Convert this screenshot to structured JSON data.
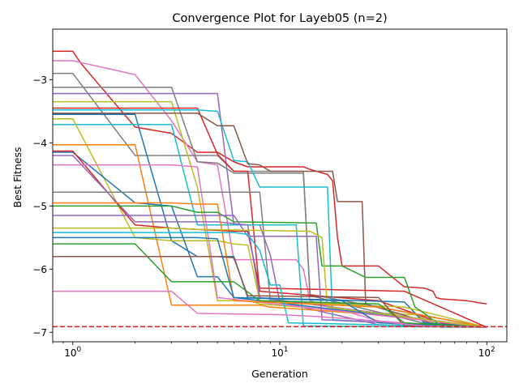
{
  "chart_data": {
    "type": "line",
    "title": "Convergence Plot for Layeb05 (n=2)",
    "xlabel": "Generation",
    "ylabel": "Best Fitness",
    "xscale": "log",
    "xlim": [
      0.8,
      125
    ],
    "ylim": [
      -7.15,
      -2.2
    ],
    "x_ticks": [
      1,
      10,
      100
    ],
    "x_tick_labels": [
      "10^0",
      "10^1",
      "10^2"
    ],
    "y_ticks": [
      -3,
      -4,
      -5,
      -6,
      -7
    ],
    "y_tick_labels": [
      "−3",
      "−4",
      "−5",
      "−6",
      "−7"
    ],
    "grid": false,
    "legend": "none",
    "reference_line": {
      "y": -6.91,
      "color": "#d62728",
      "style": "dashed"
    },
    "colors": [
      "#1f77b4",
      "#ff7f0e",
      "#2ca02c",
      "#d62728",
      "#9467bd",
      "#8c564b",
      "#e377c2",
      "#7f7f7f",
      "#bcbd22",
      "#17becf"
    ],
    "series": [
      {
        "color": "#d62728",
        "points": [
          [
            0.8,
            -2.55
          ],
          [
            1,
            -2.55
          ],
          [
            1.1,
            -2.75
          ],
          [
            2,
            -3.75
          ],
          [
            3,
            -3.85
          ],
          [
            4,
            -4.15
          ],
          [
            5,
            -4.15
          ],
          [
            6,
            -4.3
          ],
          [
            7,
            -4.38
          ],
          [
            13,
            -4.38
          ],
          [
            14,
            -4.42
          ],
          [
            17,
            -4.5
          ],
          [
            18,
            -4.6
          ],
          [
            19,
            -5.5
          ],
          [
            20,
            -5.95
          ],
          [
            30,
            -5.95
          ],
          [
            40,
            -6.28
          ],
          [
            50,
            -6.3
          ],
          [
            55,
            -6.35
          ],
          [
            57,
            -6.45
          ],
          [
            60,
            -6.47
          ],
          [
            80,
            -6.5
          ],
          [
            100,
            -6.55
          ]
        ]
      },
      {
        "color": "#e377c2",
        "points": [
          [
            0.8,
            -2.7
          ],
          [
            1,
            -2.7
          ],
          [
            2,
            -2.92
          ],
          [
            3,
            -3.65
          ],
          [
            4,
            -4.3
          ],
          [
            5,
            -4.35
          ],
          [
            6,
            -5.85
          ],
          [
            12,
            -5.85
          ],
          [
            13,
            -6.0
          ],
          [
            14,
            -6.5
          ],
          [
            30,
            -6.82
          ],
          [
            60,
            -6.9
          ],
          [
            100,
            -6.92
          ]
        ]
      },
      {
        "color": "#7f7f7f",
        "points": [
          [
            0.8,
            -2.9
          ],
          [
            1,
            -2.9
          ],
          [
            2,
            -4.2
          ],
          [
            4,
            -4.2
          ],
          [
            5,
            -4.2
          ],
          [
            6,
            -4.45
          ],
          [
            7,
            -4.45
          ],
          [
            8,
            -4.45
          ],
          [
            13,
            -4.45
          ],
          [
            14,
            -6.4
          ],
          [
            100,
            -6.92
          ]
        ]
      },
      {
        "color": "#7f7f7f",
        "points": [
          [
            0.8,
            -3.12
          ],
          [
            1,
            -3.12
          ],
          [
            3,
            -3.12
          ],
          [
            4,
            -4.3
          ],
          [
            5,
            -4.32
          ],
          [
            6,
            -4.48
          ],
          [
            13,
            -4.48
          ],
          [
            14,
            -6.42
          ],
          [
            60,
            -6.92
          ],
          [
            100,
            -6.92
          ]
        ]
      },
      {
        "color": "#9467bd",
        "points": [
          [
            0.8,
            -3.22
          ],
          [
            1,
            -3.22
          ],
          [
            2,
            -3.22
          ],
          [
            5,
            -3.22
          ],
          [
            6,
            -5.3
          ],
          [
            8,
            -5.3
          ],
          [
            9,
            -5.78
          ],
          [
            10,
            -6.52
          ],
          [
            30,
            -6.88
          ],
          [
            100,
            -6.92
          ]
        ]
      },
      {
        "color": "#bcbd22",
        "points": [
          [
            0.8,
            -3.35
          ],
          [
            1,
            -3.35
          ],
          [
            3,
            -3.35
          ],
          [
            4,
            -4.7
          ],
          [
            5,
            -6.5
          ],
          [
            7,
            -6.5
          ],
          [
            8,
            -6.55
          ],
          [
            30,
            -6.7
          ],
          [
            45,
            -6.72
          ],
          [
            60,
            -6.9
          ],
          [
            100,
            -6.92
          ]
        ]
      },
      {
        "color": "#d62728",
        "points": [
          [
            0.8,
            -3.45
          ],
          [
            1,
            -3.45
          ],
          [
            4,
            -3.45
          ],
          [
            5,
            -4.18
          ],
          [
            6,
            -4.45
          ],
          [
            7,
            -4.45
          ],
          [
            8,
            -6.35
          ],
          [
            30,
            -6.5
          ],
          [
            60,
            -6.85
          ],
          [
            100,
            -6.92
          ]
        ]
      },
      {
        "color": "#17becf",
        "points": [
          [
            0.8,
            -3.48
          ],
          [
            2,
            -3.48
          ],
          [
            4,
            -3.48
          ],
          [
            5,
            -3.5
          ],
          [
            6,
            -4.28
          ],
          [
            7,
            -4.3
          ],
          [
            8,
            -4.7
          ],
          [
            17,
            -4.7
          ],
          [
            18,
            -6.8
          ],
          [
            60,
            -6.9
          ],
          [
            100,
            -6.92
          ]
        ]
      },
      {
        "color": "#8c564b",
        "points": [
          [
            0.8,
            -3.53
          ],
          [
            1,
            -3.53
          ],
          [
            4,
            -3.53
          ],
          [
            5,
            -3.73
          ],
          [
            6,
            -3.73
          ],
          [
            7,
            -4.33
          ],
          [
            8,
            -4.35
          ],
          [
            9,
            -4.45
          ],
          [
            18,
            -4.45
          ],
          [
            19,
            -4.93
          ],
          [
            25,
            -4.93
          ],
          [
            26,
            -6.55
          ],
          [
            60,
            -6.9
          ],
          [
            100,
            -6.92
          ]
        ]
      },
      {
        "color": "#1f77b4",
        "points": [
          [
            0.8,
            -3.55
          ],
          [
            1,
            -3.55
          ],
          [
            2,
            -3.55
          ],
          [
            3,
            -5.55
          ],
          [
            4,
            -5.8
          ],
          [
            6,
            -5.8
          ],
          [
            7,
            -6.45
          ],
          [
            40,
            -6.52
          ],
          [
            50,
            -6.85
          ],
          [
            100,
            -6.92
          ]
        ]
      },
      {
        "color": "#17becf",
        "points": [
          [
            0.8,
            -3.71
          ],
          [
            1,
            -3.71
          ],
          [
            3,
            -3.71
          ],
          [
            4,
            -5.3
          ],
          [
            12,
            -5.3
          ],
          [
            13,
            -6.9
          ],
          [
            100,
            -6.92
          ]
        ]
      },
      {
        "color": "#bcbd22",
        "points": [
          [
            0.8,
            -3.62
          ],
          [
            1,
            -3.62
          ],
          [
            2,
            -5.5
          ],
          [
            3,
            -5.55
          ],
          [
            5,
            -5.55
          ],
          [
            6,
            -5.6
          ],
          [
            7,
            -5.62
          ],
          [
            8,
            -6.5
          ],
          [
            40,
            -6.6
          ],
          [
            100,
            -6.92
          ]
        ]
      },
      {
        "color": "#ff7f0e",
        "points": [
          [
            0.8,
            -4.03
          ],
          [
            1,
            -4.03
          ],
          [
            2,
            -4.03
          ],
          [
            3,
            -6.57
          ],
          [
            8,
            -6.57
          ],
          [
            9,
            -6.6
          ],
          [
            30,
            -6.72
          ],
          [
            100,
            -6.92
          ]
        ]
      },
      {
        "color": "#1f77b4",
        "points": [
          [
            0.8,
            -4.15
          ],
          [
            1,
            -4.15
          ],
          [
            2,
            -4.95
          ],
          [
            3,
            -5.0
          ],
          [
            4,
            -6.12
          ],
          [
            5,
            -6.12
          ],
          [
            6,
            -6.45
          ],
          [
            100,
            -6.92
          ]
        ]
      },
      {
        "color": "#d62728",
        "points": [
          [
            0.8,
            -4.13
          ],
          [
            1,
            -4.13
          ],
          [
            2,
            -5.3
          ],
          [
            3,
            -5.35
          ],
          [
            6,
            -5.4
          ],
          [
            7,
            -5.4
          ],
          [
            8,
            -6.3
          ],
          [
            40,
            -6.35
          ],
          [
            100,
            -6.92
          ]
        ]
      },
      {
        "color": "#e377c2",
        "points": [
          [
            0.8,
            -4.35
          ],
          [
            1,
            -4.35
          ],
          [
            3,
            -4.35
          ],
          [
            4,
            -4.38
          ],
          [
            5,
            -6.45
          ],
          [
            100,
            -6.92
          ]
        ]
      },
      {
        "color": "#9467bd",
        "points": [
          [
            0.8,
            -4.2
          ],
          [
            1,
            -4.2
          ],
          [
            2,
            -5.25
          ],
          [
            5,
            -5.25
          ],
          [
            6,
            -5.28
          ],
          [
            7,
            -5.3
          ],
          [
            8,
            -6.45
          ],
          [
            100,
            -6.92
          ]
        ]
      },
      {
        "color": "#7f7f7f",
        "points": [
          [
            0.8,
            -4.78
          ],
          [
            1,
            -4.78
          ],
          [
            6,
            -4.78
          ],
          [
            7,
            -4.78
          ],
          [
            8,
            -4.78
          ],
          [
            9,
            -6.5
          ],
          [
            25,
            -6.55
          ],
          [
            100,
            -6.92
          ]
        ]
      },
      {
        "color": "#ff7f0e",
        "points": [
          [
            0.8,
            -4.95
          ],
          [
            1,
            -4.95
          ],
          [
            3,
            -4.95
          ],
          [
            4,
            -4.97
          ],
          [
            5,
            -4.97
          ],
          [
            6,
            -6.5
          ],
          [
            30,
            -6.6
          ],
          [
            100,
            -6.92
          ]
        ]
      },
      {
        "color": "#2ca02c",
        "points": [
          [
            0.8,
            -5.0
          ],
          [
            1,
            -5.0
          ],
          [
            3,
            -5.0
          ],
          [
            4,
            -5.1
          ],
          [
            5,
            -5.1
          ],
          [
            6,
            -5.25
          ],
          [
            15,
            -5.27
          ],
          [
            16,
            -5.95
          ],
          [
            20,
            -5.95
          ],
          [
            26,
            -6.13
          ],
          [
            40,
            -6.13
          ],
          [
            45,
            -6.6
          ],
          [
            50,
            -6.7
          ],
          [
            60,
            -6.9
          ],
          [
            100,
            -6.92
          ]
        ]
      },
      {
        "color": "#9467bd",
        "points": [
          [
            0.8,
            -5.15
          ],
          [
            1,
            -5.15
          ],
          [
            2,
            -5.15
          ],
          [
            3,
            -5.15
          ],
          [
            6,
            -5.15
          ],
          [
            7,
            -5.48
          ],
          [
            15,
            -5.48
          ],
          [
            16,
            -6.8
          ],
          [
            100,
            -6.92
          ]
        ]
      },
      {
        "color": "#bcbd22",
        "points": [
          [
            0.8,
            -5.35
          ],
          [
            1,
            -5.35
          ],
          [
            3,
            -5.35
          ],
          [
            4,
            -5.37
          ],
          [
            14,
            -5.4
          ],
          [
            16,
            -5.5
          ],
          [
            17,
            -6.6
          ],
          [
            100,
            -6.92
          ]
        ]
      },
      {
        "color": "#17becf",
        "points": [
          [
            0.8,
            -5.42
          ],
          [
            1,
            -5.42
          ],
          [
            4,
            -5.42
          ],
          [
            6,
            -5.42
          ],
          [
            7,
            -5.45
          ],
          [
            8,
            -5.7
          ],
          [
            9,
            -6.25
          ],
          [
            10,
            -6.25
          ],
          [
            11,
            -6.85
          ],
          [
            100,
            -6.92
          ]
        ]
      },
      {
        "color": "#1f77b4",
        "points": [
          [
            0.8,
            -5.5
          ],
          [
            1,
            -5.5
          ],
          [
            3,
            -5.5
          ],
          [
            4,
            -5.5
          ],
          [
            5,
            -5.52
          ],
          [
            6,
            -6.45
          ],
          [
            20,
            -6.5
          ],
          [
            30,
            -6.85
          ],
          [
            100,
            -6.92
          ]
        ]
      },
      {
        "color": "#2ca02c",
        "points": [
          [
            0.8,
            -5.6
          ],
          [
            1,
            -5.6
          ],
          [
            2,
            -5.6
          ],
          [
            3,
            -6.2
          ],
          [
            6,
            -6.2
          ],
          [
            8,
            -6.5
          ],
          [
            30,
            -6.55
          ],
          [
            40,
            -6.85
          ],
          [
            100,
            -6.92
          ]
        ]
      },
      {
        "color": "#8c564b",
        "points": [
          [
            0.8,
            -5.8
          ],
          [
            1,
            -5.8
          ],
          [
            5,
            -5.8
          ],
          [
            6,
            -5.82
          ],
          [
            7,
            -6.42
          ],
          [
            30,
            -6.45
          ],
          [
            40,
            -6.9
          ],
          [
            100,
            -6.92
          ]
        ]
      },
      {
        "color": "#e377c2",
        "points": [
          [
            0.8,
            -6.35
          ],
          [
            1,
            -6.35
          ],
          [
            3,
            -6.35
          ],
          [
            4,
            -6.7
          ],
          [
            10,
            -6.72
          ],
          [
            15,
            -6.75
          ],
          [
            25,
            -6.8
          ],
          [
            50,
            -6.9
          ],
          [
            100,
            -6.92
          ]
        ]
      }
    ]
  }
}
